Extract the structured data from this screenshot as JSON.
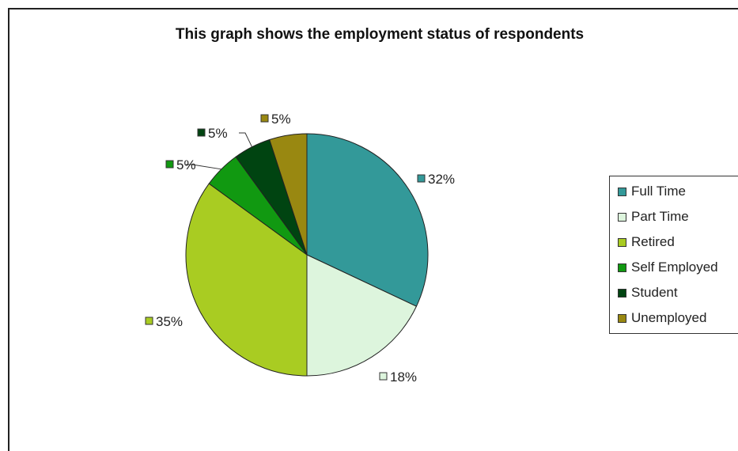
{
  "chart_data": {
    "type": "pie",
    "title": "This graph shows the employment status of respondents",
    "categories": [
      "Full Time",
      "Part Time",
      "Retired",
      "Self Employed",
      "Student",
      "Unemployed"
    ],
    "values": [
      32,
      18,
      35,
      5,
      5,
      5
    ],
    "data_labels": [
      "32%",
      "18%",
      "35%",
      "5%",
      "5%",
      "5%"
    ],
    "colors": [
      "#339999",
      "#ddf5dd",
      "#a9cc22",
      "#119911",
      "#004411",
      "#998811"
    ],
    "legend": "right"
  }
}
